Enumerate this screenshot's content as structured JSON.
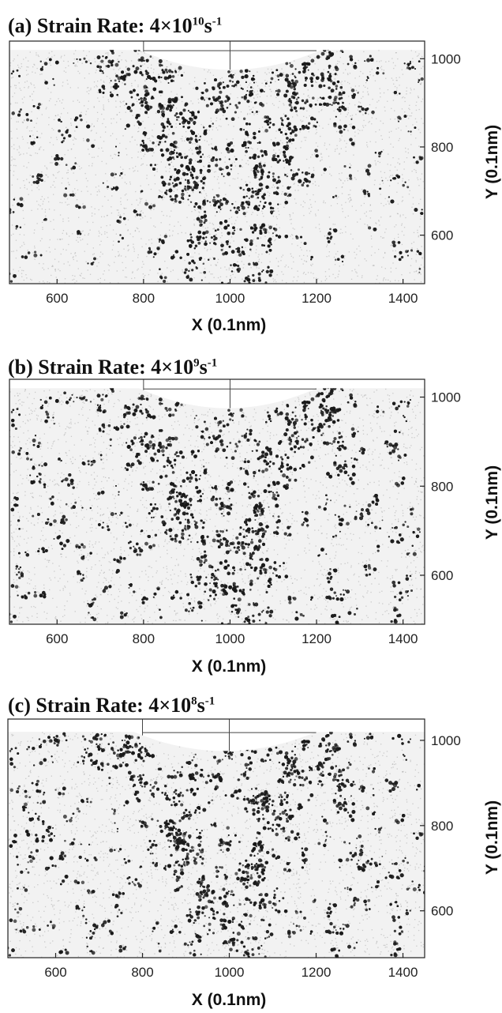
{
  "chart_data": [
    {
      "type": "scatter",
      "panel_label": "(a)",
      "title_text": "Strain Rate: 4",
      "title_times": "×",
      "title_base": "10",
      "title_exp": "10",
      "title_unit": "s",
      "title_unit_exp": "-1",
      "xlabel": "X (0.1nm)",
      "ylabel": "Y (0.1nm)",
      "xticks": [
        600,
        800,
        1000,
        1200,
        1400
      ],
      "yticks": [
        600,
        800,
        1000
      ],
      "xlim": [
        490,
        1450
      ],
      "ylim": [
        490,
        1040
      ],
      "indent": {
        "left_x": 790,
        "right_x": 1210,
        "bottom_y": 975,
        "surface_y": 1020
      },
      "density": {
        "base": 0.12,
        "v_strength": 0.65,
        "top_strength": 0.5,
        "v_spread": 60
      }
    },
    {
      "type": "scatter",
      "panel_label": "(b)",
      "title_text": "Strain Rate: 4",
      "title_times": "×",
      "title_base": "10",
      "title_exp": "9",
      "title_unit": "s",
      "title_unit_exp": "-1",
      "xlabel": "X (0.1nm)",
      "ylabel": "Y (0.1nm)",
      "xticks": [
        600,
        800,
        1000,
        1200,
        1400
      ],
      "yticks": [
        600,
        800,
        1000
      ],
      "xlim": [
        490,
        1450
      ],
      "ylim": [
        490,
        1040
      ],
      "indent": {
        "left_x": 790,
        "right_x": 1200,
        "bottom_y": 975,
        "surface_y": 1020
      },
      "density": {
        "base": 0.2,
        "v_strength": 0.75,
        "top_strength": 0.45,
        "v_spread": 45
      }
    },
    {
      "type": "scatter",
      "panel_label": "(c)",
      "title_text": "Strain Rate: 4",
      "title_times": "×",
      "title_base": "10",
      "title_exp": "8",
      "title_unit": "s",
      "title_unit_exp": "-1",
      "xlabel": "X (0.1nm)",
      "ylabel": "Y (0.1nm)",
      "xticks": [
        600,
        800,
        1000,
        1200,
        1400
      ],
      "yticks": [
        600,
        800,
        1000
      ],
      "xlim": [
        490,
        1450
      ],
      "ylim": [
        490,
        1040
      ],
      "indent": {
        "left_x": 780,
        "right_x": 1200,
        "bottom_y": 975,
        "surface_y": 1020
      },
      "density": {
        "base": 0.22,
        "v_strength": 0.8,
        "top_strength": 0.5,
        "v_spread": 45
      }
    }
  ],
  "colors": {
    "atoms": "#1a1a1a",
    "background": "#f2f2f2",
    "axis": "#222222",
    "guide": "#444444"
  }
}
